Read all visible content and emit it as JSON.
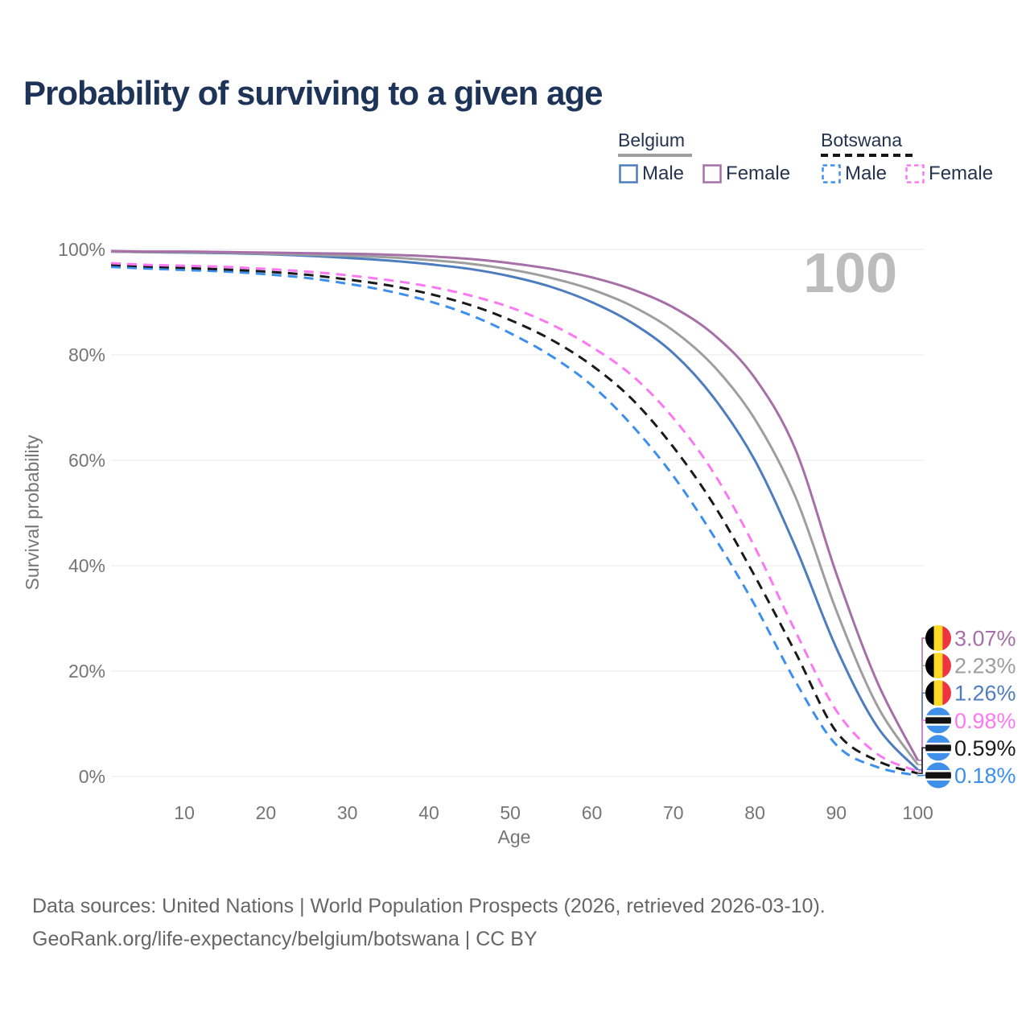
{
  "title": "Probability of surviving to a given age",
  "watermark": "100",
  "legend": {
    "position": "top-right",
    "groups": [
      {
        "name": "Belgium",
        "line_style": "solid",
        "underline_color": "#9e9e9e",
        "items": [
          {
            "label": "Male",
            "color": "#4d7dbf",
            "dashed": false
          },
          {
            "label": "Female",
            "color": "#a76fa7",
            "dashed": false
          }
        ]
      },
      {
        "name": "Botswana",
        "line_style": "dashed",
        "underline_color": "#161616",
        "items": [
          {
            "label": "Male",
            "color": "#3d8fee",
            "dashed": true
          },
          {
            "label": "Female",
            "color": "#fb78f2",
            "dashed": true
          }
        ]
      }
    ]
  },
  "chart_data": {
    "type": "line",
    "title": "Probability of surviving to a given age",
    "xlabel": "Age",
    "ylabel": "Survival probability",
    "xlim": [
      1,
      100
    ],
    "ylim": [
      0,
      100
    ],
    "grid": "horizontal-only",
    "x_ticks": [
      {
        "value": 10,
        "label": "10"
      },
      {
        "value": 20,
        "label": "20"
      },
      {
        "value": 30,
        "label": "30"
      },
      {
        "value": 40,
        "label": "40"
      },
      {
        "value": 50,
        "label": "50"
      },
      {
        "value": 60,
        "label": "60"
      },
      {
        "value": 70,
        "label": "70"
      },
      {
        "value": 80,
        "label": "80"
      },
      {
        "value": 90,
        "label": "90"
      },
      {
        "value": 100,
        "label": "100"
      }
    ],
    "y_ticks": [
      {
        "value": 0,
        "label": "0%"
      },
      {
        "value": 20,
        "label": "20%"
      },
      {
        "value": 40,
        "label": "40%"
      },
      {
        "value": 60,
        "label": "60%"
      },
      {
        "value": 80,
        "label": "80%"
      },
      {
        "value": 100,
        "label": "100%"
      }
    ],
    "series": [
      {
        "key": "belgium-female",
        "country": "Belgium",
        "legend_label": "Female",
        "color": "#a76fa7",
        "dashed": false,
        "flag": "belgium",
        "end_label": "3.07%",
        "points": [
          [
            1,
            99.7
          ],
          [
            5,
            99.6
          ],
          [
            10,
            99.6
          ],
          [
            15,
            99.5
          ],
          [
            20,
            99.4
          ],
          [
            25,
            99.3
          ],
          [
            30,
            99.2
          ],
          [
            35,
            99.0
          ],
          [
            40,
            98.7
          ],
          [
            45,
            98.2
          ],
          [
            50,
            97.4
          ],
          [
            55,
            96.3
          ],
          [
            60,
            94.7
          ],
          [
            65,
            92.4
          ],
          [
            70,
            89.0
          ],
          [
            75,
            83.8
          ],
          [
            80,
            75.6
          ],
          [
            85,
            62.0
          ],
          [
            90,
            38.5
          ],
          [
            95,
            18.0
          ],
          [
            100,
            3.07
          ]
        ]
      },
      {
        "key": "belgium-combined",
        "country": "Belgium",
        "legend_label": "",
        "color": "#9e9e9e",
        "dashed": false,
        "flag": "belgium",
        "end_label": "2.23%",
        "points": [
          [
            1,
            99.6
          ],
          [
            5,
            99.5
          ],
          [
            10,
            99.5
          ],
          [
            15,
            99.4
          ],
          [
            20,
            99.2
          ],
          [
            25,
            99.0
          ],
          [
            30,
            98.8
          ],
          [
            35,
            98.5
          ],
          [
            40,
            98.0
          ],
          [
            45,
            97.3
          ],
          [
            50,
            96.2
          ],
          [
            55,
            94.6
          ],
          [
            60,
            92.4
          ],
          [
            65,
            89.2
          ],
          [
            70,
            84.6
          ],
          [
            75,
            77.8
          ],
          [
            80,
            67.8
          ],
          [
            85,
            53.0
          ],
          [
            90,
            31.5
          ],
          [
            95,
            13.5
          ],
          [
            100,
            2.23
          ]
        ]
      },
      {
        "key": "belgium-male",
        "country": "Belgium",
        "legend_label": "Male",
        "color": "#4d7dbf",
        "dashed": false,
        "flag": "belgium",
        "end_label": "1.26%",
        "points": [
          [
            1,
            99.6
          ],
          [
            5,
            99.5
          ],
          [
            10,
            99.4
          ],
          [
            15,
            99.3
          ],
          [
            20,
            99.1
          ],
          [
            25,
            98.8
          ],
          [
            30,
            98.4
          ],
          [
            35,
            97.9
          ],
          [
            40,
            97.2
          ],
          [
            45,
            96.3
          ],
          [
            50,
            94.9
          ],
          [
            55,
            92.9
          ],
          [
            60,
            90.0
          ],
          [
            65,
            86.0
          ],
          [
            70,
            80.3
          ],
          [
            75,
            71.8
          ],
          [
            80,
            60.0
          ],
          [
            85,
            43.5
          ],
          [
            90,
            24.4
          ],
          [
            95,
            9.5
          ],
          [
            100,
            1.26
          ]
        ]
      },
      {
        "key": "botswana-female",
        "country": "Botswana",
        "legend_label": "Female",
        "color": "#fb78f2",
        "dashed": true,
        "flag": "botswana",
        "end_label": "0.98%",
        "points": [
          [
            1,
            97.4
          ],
          [
            5,
            97.1
          ],
          [
            10,
            96.9
          ],
          [
            15,
            96.7
          ],
          [
            20,
            96.3
          ],
          [
            25,
            95.8
          ],
          [
            30,
            95.1
          ],
          [
            35,
            94.2
          ],
          [
            40,
            93.0
          ],
          [
            45,
            91.3
          ],
          [
            50,
            89.0
          ],
          [
            55,
            85.8
          ],
          [
            60,
            81.5
          ],
          [
            65,
            76.0
          ],
          [
            70,
            68.0
          ],
          [
            75,
            57.5
          ],
          [
            80,
            43.5
          ],
          [
            85,
            27.5
          ],
          [
            90,
            12.5
          ],
          [
            95,
            4.3
          ],
          [
            100,
            0.98
          ]
        ]
      },
      {
        "key": "botswana-combined",
        "country": "Botswana",
        "legend_label": "",
        "color": "#1a1a1a",
        "dashed": true,
        "flag": "botswana",
        "end_label": "0.59%",
        "points": [
          [
            1,
            97.1
          ],
          [
            5,
            96.8
          ],
          [
            10,
            96.5
          ],
          [
            15,
            96.2
          ],
          [
            20,
            95.8
          ],
          [
            25,
            95.2
          ],
          [
            30,
            94.3
          ],
          [
            35,
            93.2
          ],
          [
            40,
            91.6
          ],
          [
            45,
            89.5
          ],
          [
            50,
            86.6
          ],
          [
            55,
            82.9
          ],
          [
            60,
            78.0
          ],
          [
            65,
            71.5
          ],
          [
            70,
            62.5
          ],
          [
            75,
            51.5
          ],
          [
            80,
            38.0
          ],
          [
            85,
            23.5
          ],
          [
            90,
            8.5
          ],
          [
            95,
            3.0
          ],
          [
            100,
            0.59
          ]
        ]
      },
      {
        "key": "botswana-male",
        "country": "Botswana",
        "legend_label": "Male",
        "color": "#3d8fee",
        "dashed": true,
        "flag": "botswana",
        "end_label": "0.18%",
        "points": [
          [
            1,
            96.7
          ],
          [
            5,
            96.4
          ],
          [
            10,
            96.1
          ],
          [
            15,
            95.8
          ],
          [
            20,
            95.3
          ],
          [
            25,
            94.6
          ],
          [
            30,
            93.5
          ],
          [
            35,
            92.1
          ],
          [
            40,
            90.2
          ],
          [
            45,
            87.6
          ],
          [
            50,
            84.1
          ],
          [
            55,
            79.8
          ],
          [
            60,
            74.2
          ],
          [
            65,
            66.5
          ],
          [
            70,
            57.0
          ],
          [
            75,
            45.5
          ],
          [
            80,
            32.5
          ],
          [
            85,
            18.0
          ],
          [
            90,
            6.0
          ],
          [
            95,
            1.8
          ],
          [
            100,
            0.18
          ]
        ]
      }
    ],
    "flag_colors": {
      "belgium": [
        "#000000",
        "#fdda24",
        "#ef3340"
      ],
      "botswana": {
        "blue": "#3f90e8",
        "white": "#ffffff",
        "black": "#111111"
      }
    }
  },
  "footer": {
    "lines": [
      "Data sources: United Nations | World Population Prospects (2026, retrieved 2026-03-10).",
      "GeoRank.org/life-expectancy/belgium/botswana | CC BY"
    ]
  }
}
